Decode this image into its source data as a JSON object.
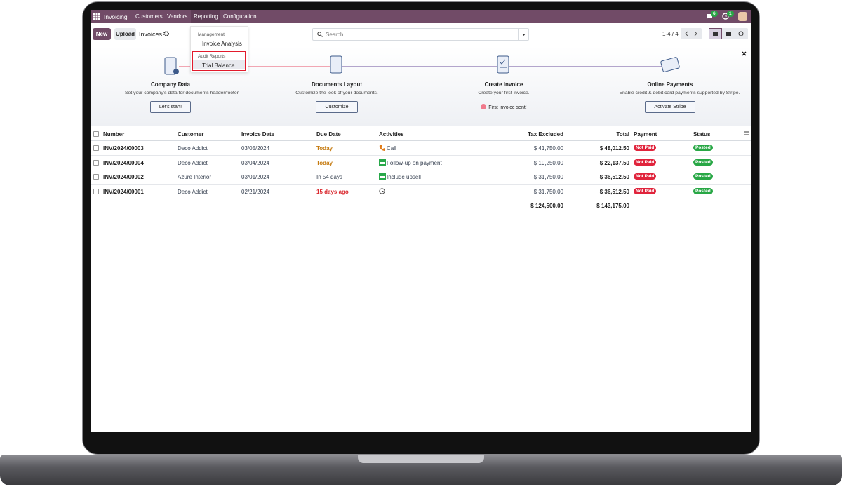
{
  "navbar": {
    "app": "Invoicing",
    "menu": [
      "Customers",
      "Vendors",
      "Reporting",
      "Configuration"
    ],
    "badges": [
      "6",
      "1"
    ]
  },
  "control_panel": {
    "new": "New",
    "upload": "Upload",
    "title": "Invoices",
    "search_placeholder": "Search...",
    "pager": "1-4 / 4"
  },
  "dropdown": {
    "sections": [
      {
        "header": "Management",
        "items": [
          "Invoice Analysis"
        ]
      },
      {
        "header": "Audit Reports",
        "items": [
          "Trial Balance"
        ]
      }
    ]
  },
  "onboarding": {
    "steps": [
      {
        "title": "Company Data",
        "description": "Set your company’s data for documents header/footer.",
        "button": "Let’s start!"
      },
      {
        "title": "Documents Layout",
        "description": "Customize the look of your documents.",
        "button": "Customize"
      },
      {
        "title": "Create Invoice",
        "description": "Create your first invoice.",
        "status": "First invoice sent!"
      },
      {
        "title": "Online Payments",
        "description": "Enable credit & debit card payments supported by Stripe.",
        "button": "Activate Stripe"
      }
    ]
  },
  "table": {
    "columns": [
      "Number",
      "Customer",
      "Invoice Date",
      "Due Date",
      "Activities",
      "Tax Excluded",
      "Total",
      "Payment",
      "Status"
    ],
    "rows": [
      {
        "number": "INV/2024/00003",
        "customer": "Deco Addict",
        "invoice_date": "03/05/2024",
        "due_date": "Today",
        "activity": "Call",
        "tax_excluded": "$ 41,750.00",
        "total": "$ 48,012.50",
        "payment": "Not Paid",
        "status": "Posted"
      },
      {
        "number": "INV/2024/00004",
        "customer": "Deco Addict",
        "invoice_date": "03/04/2024",
        "due_date": "Today",
        "activity": "Follow-up on payment",
        "tax_excluded": "$ 19,250.00",
        "total": "$ 22,137.50",
        "payment": "Not Paid",
        "status": "Posted"
      },
      {
        "number": "INV/2024/00002",
        "customer": "Azure Interior",
        "invoice_date": "03/01/2024",
        "due_date": "In 54 days",
        "activity": "Include upsell",
        "tax_excluded": "$ 31,750.00",
        "total": "$ 36,512.50",
        "payment": "Not Paid",
        "status": "Posted"
      },
      {
        "number": "INV/2024/00001",
        "customer": "Deco Addict",
        "invoice_date": "02/21/2024",
        "due_date": "15 days ago",
        "tax_excluded": "$ 31,750.00",
        "total": "$ 36,512.50",
        "payment": "Not Paid",
        "status": "Posted"
      }
    ],
    "totals": {
      "tax_excluded": "$ 124,500.00",
      "total": "$ 143,175.00"
    }
  }
}
